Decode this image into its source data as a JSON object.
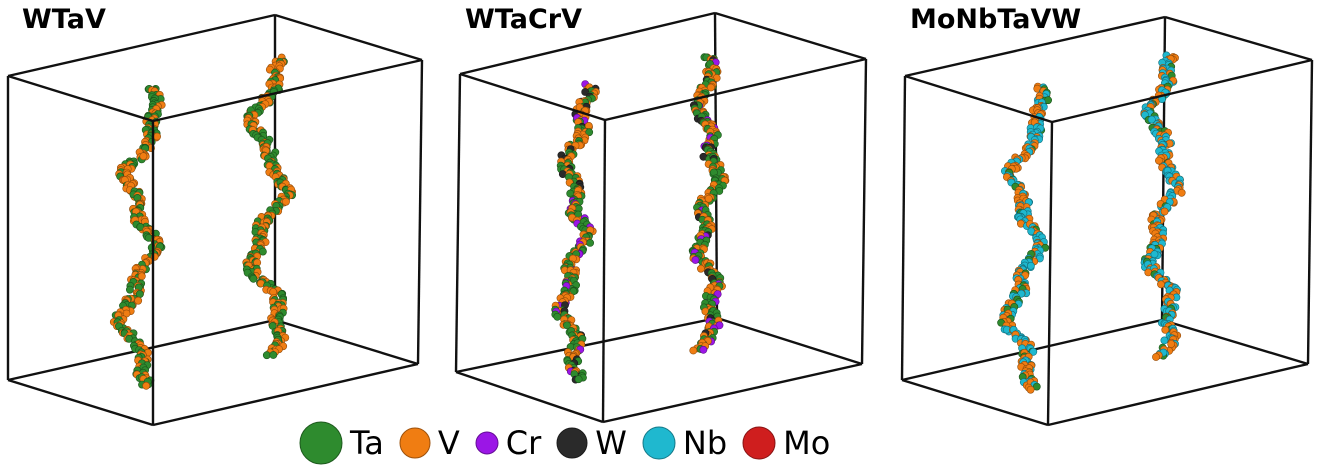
{
  "panels": [
    {
      "title": "WTaV"
    },
    {
      "title": "WTaCrV"
    },
    {
      "title": "MoNbTaVW"
    }
  ],
  "legend": [
    {
      "label": "Ta",
      "color": "#2e8b2e"
    },
    {
      "label": "V",
      "color": "#f07d12"
    },
    {
      "label": "Cr",
      "color": "#9b16e6"
    },
    {
      "label": "W",
      "color": "#2a2a2a"
    },
    {
      "label": "Nb",
      "color": "#1fb8cf"
    },
    {
      "label": "Mo",
      "color": "#cf1e1e"
    }
  ],
  "atom_mix": [
    [
      "Ta",
      "V"
    ],
    [
      "Ta",
      "V",
      "Cr",
      "W"
    ],
    [
      "Nb",
      "V",
      "Ta"
    ]
  ]
}
